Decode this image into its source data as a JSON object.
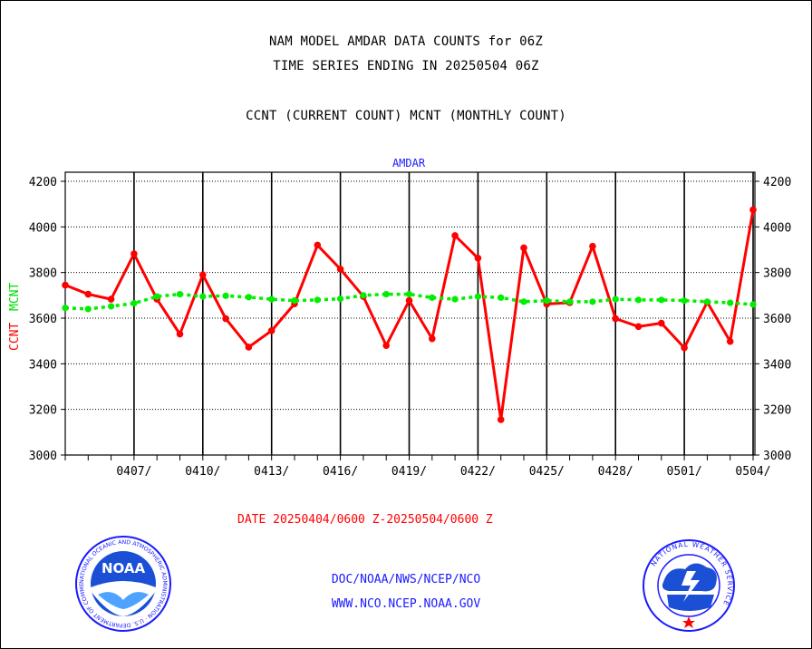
{
  "titles": {
    "line1": "NAM MODEL AMDAR DATA COUNTS for 06Z",
    "line2": "TIME SERIES ENDING IN 20250504 06Z",
    "line3": "CCNT (CURRENT COUNT) MCNT (MONTHLY COUNT)"
  },
  "footer": {
    "date_range": "DATE 20250404/0600 Z-20250504/0600 Z",
    "org_path": "DOC/NOAA/NWS/NCEP/NCO",
    "website": "WWW.NCO.NCEP.NOAA.GOV"
  },
  "logos": {
    "left": {
      "icon": "noaa-logo",
      "text": "NOAA",
      "ring_text": "NATIONAL OCEANIC AND ATMOSPHERIC ADMINISTRATION · U.S. DEPARTMENT OF COMMERCE"
    },
    "right": {
      "icon": "nws-logo",
      "ring_text": "NATIONAL WEATHER SERVICE"
    }
  },
  "colors": {
    "ccnt": "#ff0000",
    "mcnt": "#00ee00",
    "axis_label_left_ccnt": "#ff0000",
    "axis_label_left_mcnt": "#00dd00",
    "panel_title": "#1a1aff",
    "date_text": "#ff0000",
    "footer_text": "#1a1aff"
  },
  "chart_data": {
    "type": "line",
    "panel_title": "AMDAR",
    "ylabel_ccnt": "CCNT",
    "ylabel_mcnt": "MCNT",
    "ylim": [
      3000,
      4200
    ],
    "yticks": [
      3000,
      3200,
      3400,
      3600,
      3800,
      4000,
      4200
    ],
    "ytick_labels": [
      "3000",
      "3200",
      "3400",
      "3600",
      "3800",
      "4000",
      "4200"
    ],
    "x_dates": [
      "0404",
      "0405",
      "0406",
      "0407",
      "0408",
      "0409",
      "0410",
      "0411",
      "0412",
      "0413",
      "0414",
      "0415",
      "0416",
      "0417",
      "0418",
      "0419",
      "0420",
      "0421",
      "0422",
      "0423",
      "0424",
      "0425",
      "0426",
      "0427",
      "0428",
      "0429",
      "0430",
      "0501",
      "0502",
      "0503",
      "0504"
    ],
    "xtick_labels": [
      "0407/",
      "0410/",
      "0413/",
      "0416/",
      "0419/",
      "0422/",
      "0425/",
      "0428/",
      "0501/",
      "0504/"
    ],
    "xtick_dates": [
      "0407",
      "0410",
      "0413",
      "0416",
      "0419",
      "0422",
      "0425",
      "0428",
      "0501",
      "0504"
    ],
    "grid": true,
    "series": [
      {
        "name": "CCNT",
        "values": [
          3745,
          3705,
          3683,
          3882,
          3683,
          3530,
          3790,
          3598,
          3473,
          3545,
          3663,
          3920,
          3815,
          3695,
          3480,
          3677,
          3510,
          3962,
          3863,
          3155,
          3908,
          3662,
          3668,
          3915,
          3598,
          3563,
          3578,
          3470,
          3670,
          3498,
          4075
        ]
      },
      {
        "name": "MCNT",
        "values": [
          3645,
          3640,
          3652,
          3665,
          3695,
          3705,
          3695,
          3698,
          3692,
          3683,
          3677,
          3680,
          3685,
          3700,
          3705,
          3705,
          3690,
          3683,
          3695,
          3690,
          3672,
          3677,
          3672,
          3672,
          3683,
          3680,
          3680,
          3677,
          3672,
          3667,
          3660
        ]
      }
    ]
  }
}
